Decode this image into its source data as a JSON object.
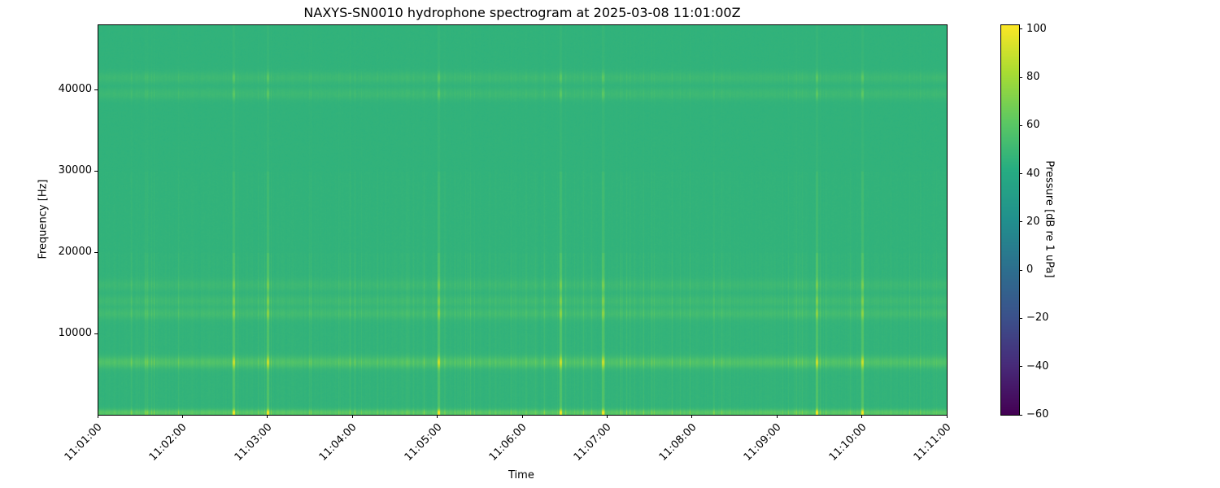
{
  "chart_data": {
    "type": "heatmap",
    "title": "NAXYS-SN0010 hydrophone spectrogram at 2025-03-08 11:01:00Z",
    "xlabel": "Time",
    "ylabel": "Frequency [Hz]",
    "colorbar_label": "Pressure [dB re 1 uPa]",
    "colormap": "viridis",
    "xlim": [
      "11:01:00",
      "11:11:00"
    ],
    "ylim": [
      0,
      48000
    ],
    "clim": [
      -60,
      102
    ],
    "x_ticks": [
      "11:01:00",
      "11:02:00",
      "11:03:00",
      "11:04:00",
      "11:05:00",
      "11:06:00",
      "11:07:00",
      "11:08:00",
      "11:09:00",
      "11:10:00",
      "11:11:00"
    ],
    "y_ticks": [
      10000,
      20000,
      30000,
      40000
    ],
    "colorbar_ticks": [
      -60,
      -40,
      -20,
      0,
      20,
      40,
      60,
      80,
      100
    ],
    "background_level_db": 45,
    "tonal_bands": [
      {
        "freq_hz": 6500,
        "level_db": 62
      },
      {
        "freq_hz": 12500,
        "level_db": 54
      },
      {
        "freq_hz": 14000,
        "level_db": 52
      },
      {
        "freq_hz": 16000,
        "level_db": 51
      },
      {
        "freq_hz": 39500,
        "level_db": 52
      },
      {
        "freq_hz": 41500,
        "level_db": 52
      },
      {
        "freq_hz": 300,
        "level_db": 68
      }
    ],
    "transient_events": [
      "11:02:36",
      "11:03:00",
      "11:05:01",
      "11:06:27",
      "11:06:57",
      "11:09:28",
      "11:10:00"
    ]
  }
}
